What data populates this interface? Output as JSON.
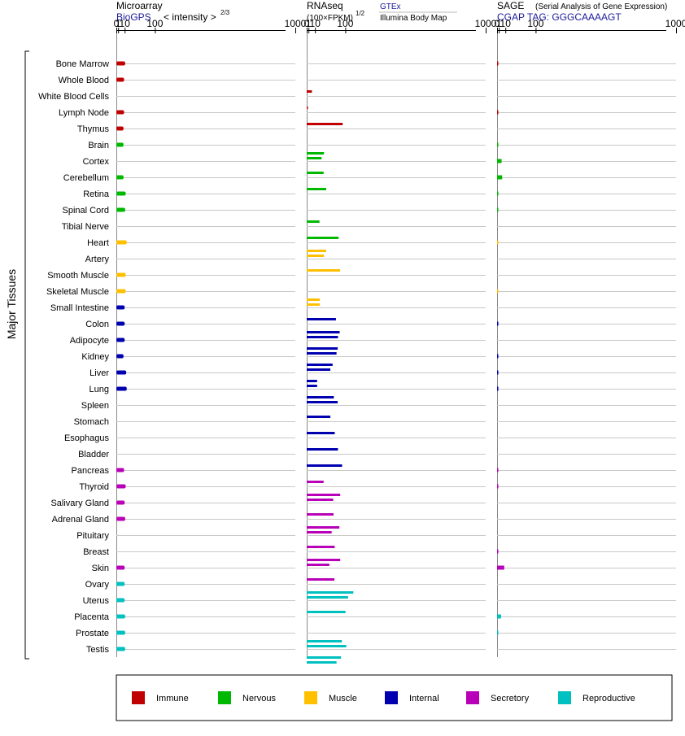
{
  "panels": {
    "microarray": {
      "title": "Microarray",
      "source": "BioGPS",
      "unit_prefix": "< intensity >",
      "unit_exp": "2/3"
    },
    "rnaseq": {
      "title": "RNAseq",
      "unit": "(100×FPKM)",
      "unit_exp": "1/2",
      "source_1": "GTEx",
      "source_2": "Illumina Body Map"
    },
    "sage": {
      "title": "SAGE",
      "subtitle": "(Serial Analysis of Gene Expression)",
      "tag": "CGAP TAG: GGGCAAAAGT"
    }
  },
  "group_label": "Major Tissues",
  "colors": {
    "Immune": "#c00000",
    "Nervous": "#00b800",
    "Muscle": "#ffc000",
    "Internal": "#0000b0",
    "Secretory": "#b800b8",
    "Reproductive": "#00c0c0"
  },
  "legend": [
    "Immune",
    "Nervous",
    "Muscle",
    "Internal",
    "Secretory",
    "Reproductive"
  ],
  "chart_data": {
    "type": "bar",
    "orientation": "horizontal",
    "x_scale": "power-2/3",
    "x_ticks": [
      "0",
      "1",
      "10",
      "100",
      "1000"
    ],
    "xlim": [
      0,
      1000
    ],
    "categories": [
      "Bone Marrow",
      "Whole Blood",
      "White Blood Cells",
      "Lymph Node",
      "Thymus",
      "Brain",
      "Cortex",
      "Cerebellum",
      "Retina",
      "Spinal Cord",
      "Tibial Nerve",
      "Heart",
      "Artery",
      "Smooth Muscle",
      "Skeletal Muscle",
      "Small Intestine",
      "Colon",
      "Adipocyte",
      "Kidney",
      "Liver",
      "Lung",
      "Spleen",
      "Stomach",
      "Esophagus",
      "Bladder",
      "Pancreas",
      "Thyroid",
      "Salivary Gland",
      "Adrenal Gland",
      "Pituitary",
      "Breast",
      "Skin",
      "Ovary",
      "Uterus",
      "Placenta",
      "Prostate",
      "Testis"
    ],
    "groups": [
      "Immune",
      "Immune",
      "Immune",
      "Immune",
      "Immune",
      "Nervous",
      "Nervous",
      "Nervous",
      "Nervous",
      "Nervous",
      "Nervous",
      "Muscle",
      "Muscle",
      "Muscle",
      "Muscle",
      "Internal",
      "Internal",
      "Internal",
      "Internal",
      "Internal",
      "Internal",
      "Internal",
      "Internal",
      "Internal",
      "Internal",
      "Secretory",
      "Secretory",
      "Secretory",
      "Secretory",
      "Secretory",
      "Secretory",
      "Secretory",
      "Reproductive",
      "Reproductive",
      "Reproductive",
      "Reproductive",
      "Reproductive"
    ],
    "series": [
      {
        "name": "Microarray",
        "values": [
          11,
          9,
          null,
          9,
          8,
          8,
          null,
          8,
          12,
          11,
          null,
          14,
          null,
          12,
          12,
          10,
          10,
          10,
          8,
          13,
          14,
          null,
          null,
          null,
          null,
          9,
          12,
          10,
          11,
          null,
          null,
          10,
          10,
          10,
          11,
          11,
          11
        ]
      },
      {
        "name": "RNAseq",
        "values": [
          null,
          [
            5
          ],
          [
            0.05
          ],
          [
            90
          ],
          null,
          [
            30,
            24
          ],
          [
            29
          ],
          [
            36
          ],
          null,
          [
            19
          ],
          [
            75
          ],
          [
            36,
            30
          ],
          [
            81
          ],
          null,
          [
            20,
            20
          ],
          [
            66
          ],
          [
            79,
            73
          ],
          [
            72,
            68
          ],
          [
            55,
            48
          ],
          [
            14,
            14
          ],
          [
            59,
            72
          ],
          [
            48
          ],
          [
            62
          ],
          [
            73
          ],
          [
            88
          ],
          [
            29
          ],
          [
            81,
            57
          ],
          [
            58
          ],
          [
            78,
            52
          ],
          [
            62
          ],
          [
            81,
            45
          ],
          [
            61
          ],
          [
            133,
            111
          ],
          [
            101
          ],
          null,
          [
            87,
            104
          ],
          [
            84,
            68
          ]
        ]
      },
      {
        "name": "SAGE",
        "values": [
          0.03,
          null,
          null,
          0.03,
          null,
          0.02,
          4.0,
          4.8,
          0.02,
          0.02,
          null,
          0.01,
          null,
          null,
          0.01,
          null,
          0.02,
          null,
          0.02,
          0.02,
          0.02,
          null,
          null,
          null,
          null,
          0.02,
          0.02,
          null,
          null,
          null,
          0.02,
          8.0,
          null,
          null,
          3.3,
          0.01,
          null
        ]
      }
    ]
  }
}
